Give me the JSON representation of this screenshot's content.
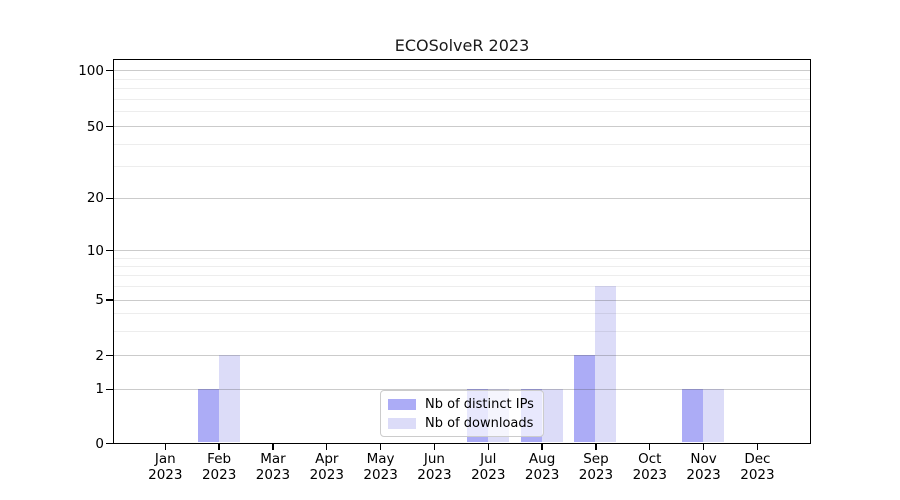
{
  "title": "ECOSolveR 2023",
  "colors": {
    "bar_distinct_ips": "#acacf6",
    "bar_downloads": "#dcdcf8",
    "grid_major": "#c9c9c9",
    "grid_minor": "#ededed",
    "axis": "#000000",
    "legend_border": "#cccccc"
  },
  "legend": {
    "items": [
      {
        "key": "distinct_ips",
        "label": "Nb of distinct IPs"
      },
      {
        "key": "downloads",
        "label": "Nb of downloads"
      }
    ]
  },
  "x_axis": {
    "months": [
      {
        "month": "Jan",
        "year": "2023"
      },
      {
        "month": "Feb",
        "year": "2023"
      },
      {
        "month": "Mar",
        "year": "2023"
      },
      {
        "month": "Apr",
        "year": "2023"
      },
      {
        "month": "May",
        "year": "2023"
      },
      {
        "month": "Jun",
        "year": "2023"
      },
      {
        "month": "Jul",
        "year": "2023"
      },
      {
        "month": "Aug",
        "year": "2023"
      },
      {
        "month": "Sep",
        "year": "2023"
      },
      {
        "month": "Oct",
        "year": "2023"
      },
      {
        "month": "Nov",
        "year": "2023"
      },
      {
        "month": "Dec",
        "year": "2023"
      }
    ]
  },
  "chart_data": {
    "type": "bar",
    "title": "ECOSolveR 2023",
    "categories": [
      "Jan 2023",
      "Feb 2023",
      "Mar 2023",
      "Apr 2023",
      "May 2023",
      "Jun 2023",
      "Jul 2023",
      "Aug 2023",
      "Sep 2023",
      "Oct 2023",
      "Nov 2023",
      "Dec 2023"
    ],
    "series": [
      {
        "name": "Nb of distinct IPs",
        "color": "#acacf6",
        "values": [
          0,
          1,
          0,
          0,
          0,
          0,
          1,
          1,
          2,
          0,
          1,
          0
        ]
      },
      {
        "name": "Nb of downloads",
        "color": "#dcdcf8",
        "values": [
          0,
          2,
          0,
          0,
          0,
          0,
          1,
          1,
          6,
          0,
          1,
          0
        ]
      }
    ],
    "xlabel": "",
    "ylabel": "",
    "yscale": "log-like (0,1,2,5,10,20,50,100)",
    "ylim": [
      0,
      115
    ],
    "yticks_major": [
      {
        "value": 0,
        "label": "0"
      },
      {
        "value": 1,
        "label": "1"
      },
      {
        "value": 2,
        "label": "2"
      },
      {
        "value": 5,
        "label": "5"
      },
      {
        "value": 10,
        "label": "10"
      },
      {
        "value": 20,
        "label": "20"
      },
      {
        "value": 50,
        "label": "50"
      },
      {
        "value": 100,
        "label": "100"
      }
    ],
    "yticks_minor": [
      3,
      4,
      6,
      7,
      8,
      9,
      30,
      40,
      60,
      70,
      80,
      90
    ],
    "grid": true,
    "legend_position": "lower center"
  }
}
